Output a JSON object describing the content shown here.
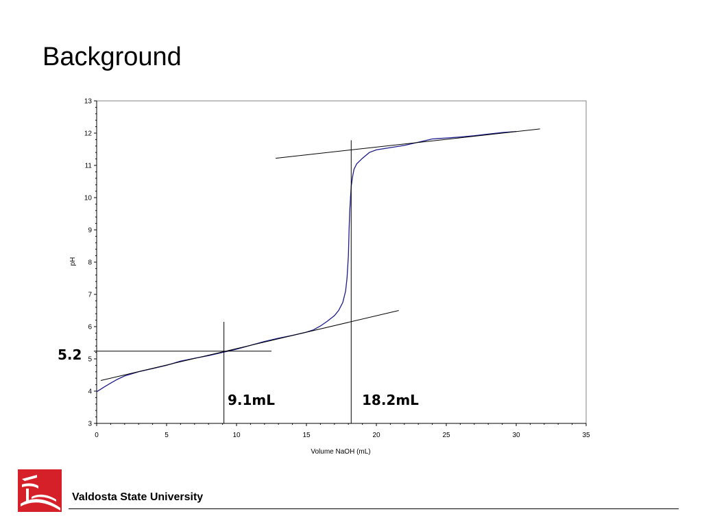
{
  "slide": {
    "title": "Background",
    "footer": "Valdosta State University"
  },
  "colors": {
    "curve": "#1a1a8c",
    "lines": "#000000",
    "logo": "#d62029"
  },
  "logo_icon": "university-seal-icon",
  "chart_data": {
    "type": "line",
    "xlabel": "Volume NaOH (mL)",
    "ylabel": "pH",
    "xlim": [
      0,
      35
    ],
    "ylim": [
      3,
      13
    ],
    "xticks": [
      0,
      5,
      10,
      15,
      20,
      25,
      30,
      35
    ],
    "yticks": [
      3,
      4,
      5,
      6,
      7,
      8,
      9,
      10,
      11,
      12,
      13
    ],
    "grid": false,
    "series": [
      {
        "x": [
          0,
          0.5,
          1,
          1.5,
          2,
          3,
          4,
          5,
          6,
          7,
          8,
          9,
          10,
          11,
          12,
          13,
          14,
          15,
          15.5,
          16,
          16.5,
          17,
          17.3,
          17.6,
          17.8,
          17.9,
          18.0,
          18.05,
          18.1,
          18.15,
          18.2,
          18.3,
          18.4,
          18.6,
          19,
          19.5,
          20,
          21,
          22,
          23,
          24,
          25,
          26,
          27,
          28,
          29,
          30
        ],
        "y": [
          3.98,
          4.12,
          4.25,
          4.37,
          4.47,
          4.6,
          4.7,
          4.8,
          4.93,
          5.02,
          5.1,
          5.2,
          5.3,
          5.42,
          5.54,
          5.64,
          5.73,
          5.83,
          5.9,
          6.02,
          6.17,
          6.34,
          6.5,
          6.75,
          7.1,
          7.5,
          8.2,
          9.0,
          9.6,
          10.0,
          10.35,
          10.65,
          10.88,
          11.05,
          11.22,
          11.4,
          11.48,
          11.55,
          11.62,
          11.72,
          11.82,
          11.85,
          11.88,
          11.92,
          11.97,
          12.02,
          12.05
        ]
      }
    ],
    "tangent_lines": [
      {
        "x": [
          0.3,
          21.6
        ],
        "y": [
          4.33,
          6.5
        ]
      },
      {
        "x": [
          12.8,
          31.7
        ],
        "y": [
          11.22,
          12.13
        ]
      }
    ],
    "reference_lines": [
      {
        "x": [
          -0.2,
          12.5
        ],
        "y": [
          5.24,
          5.24
        ]
      },
      {
        "x": [
          9.1,
          9.1
        ],
        "y": [
          3.0,
          6.15
        ]
      },
      {
        "x": [
          18.2,
          18.2
        ],
        "y": [
          3.0,
          11.78
        ]
      }
    ],
    "annotations": [
      "5.2",
      "9.1mL",
      "18.2mL"
    ]
  }
}
